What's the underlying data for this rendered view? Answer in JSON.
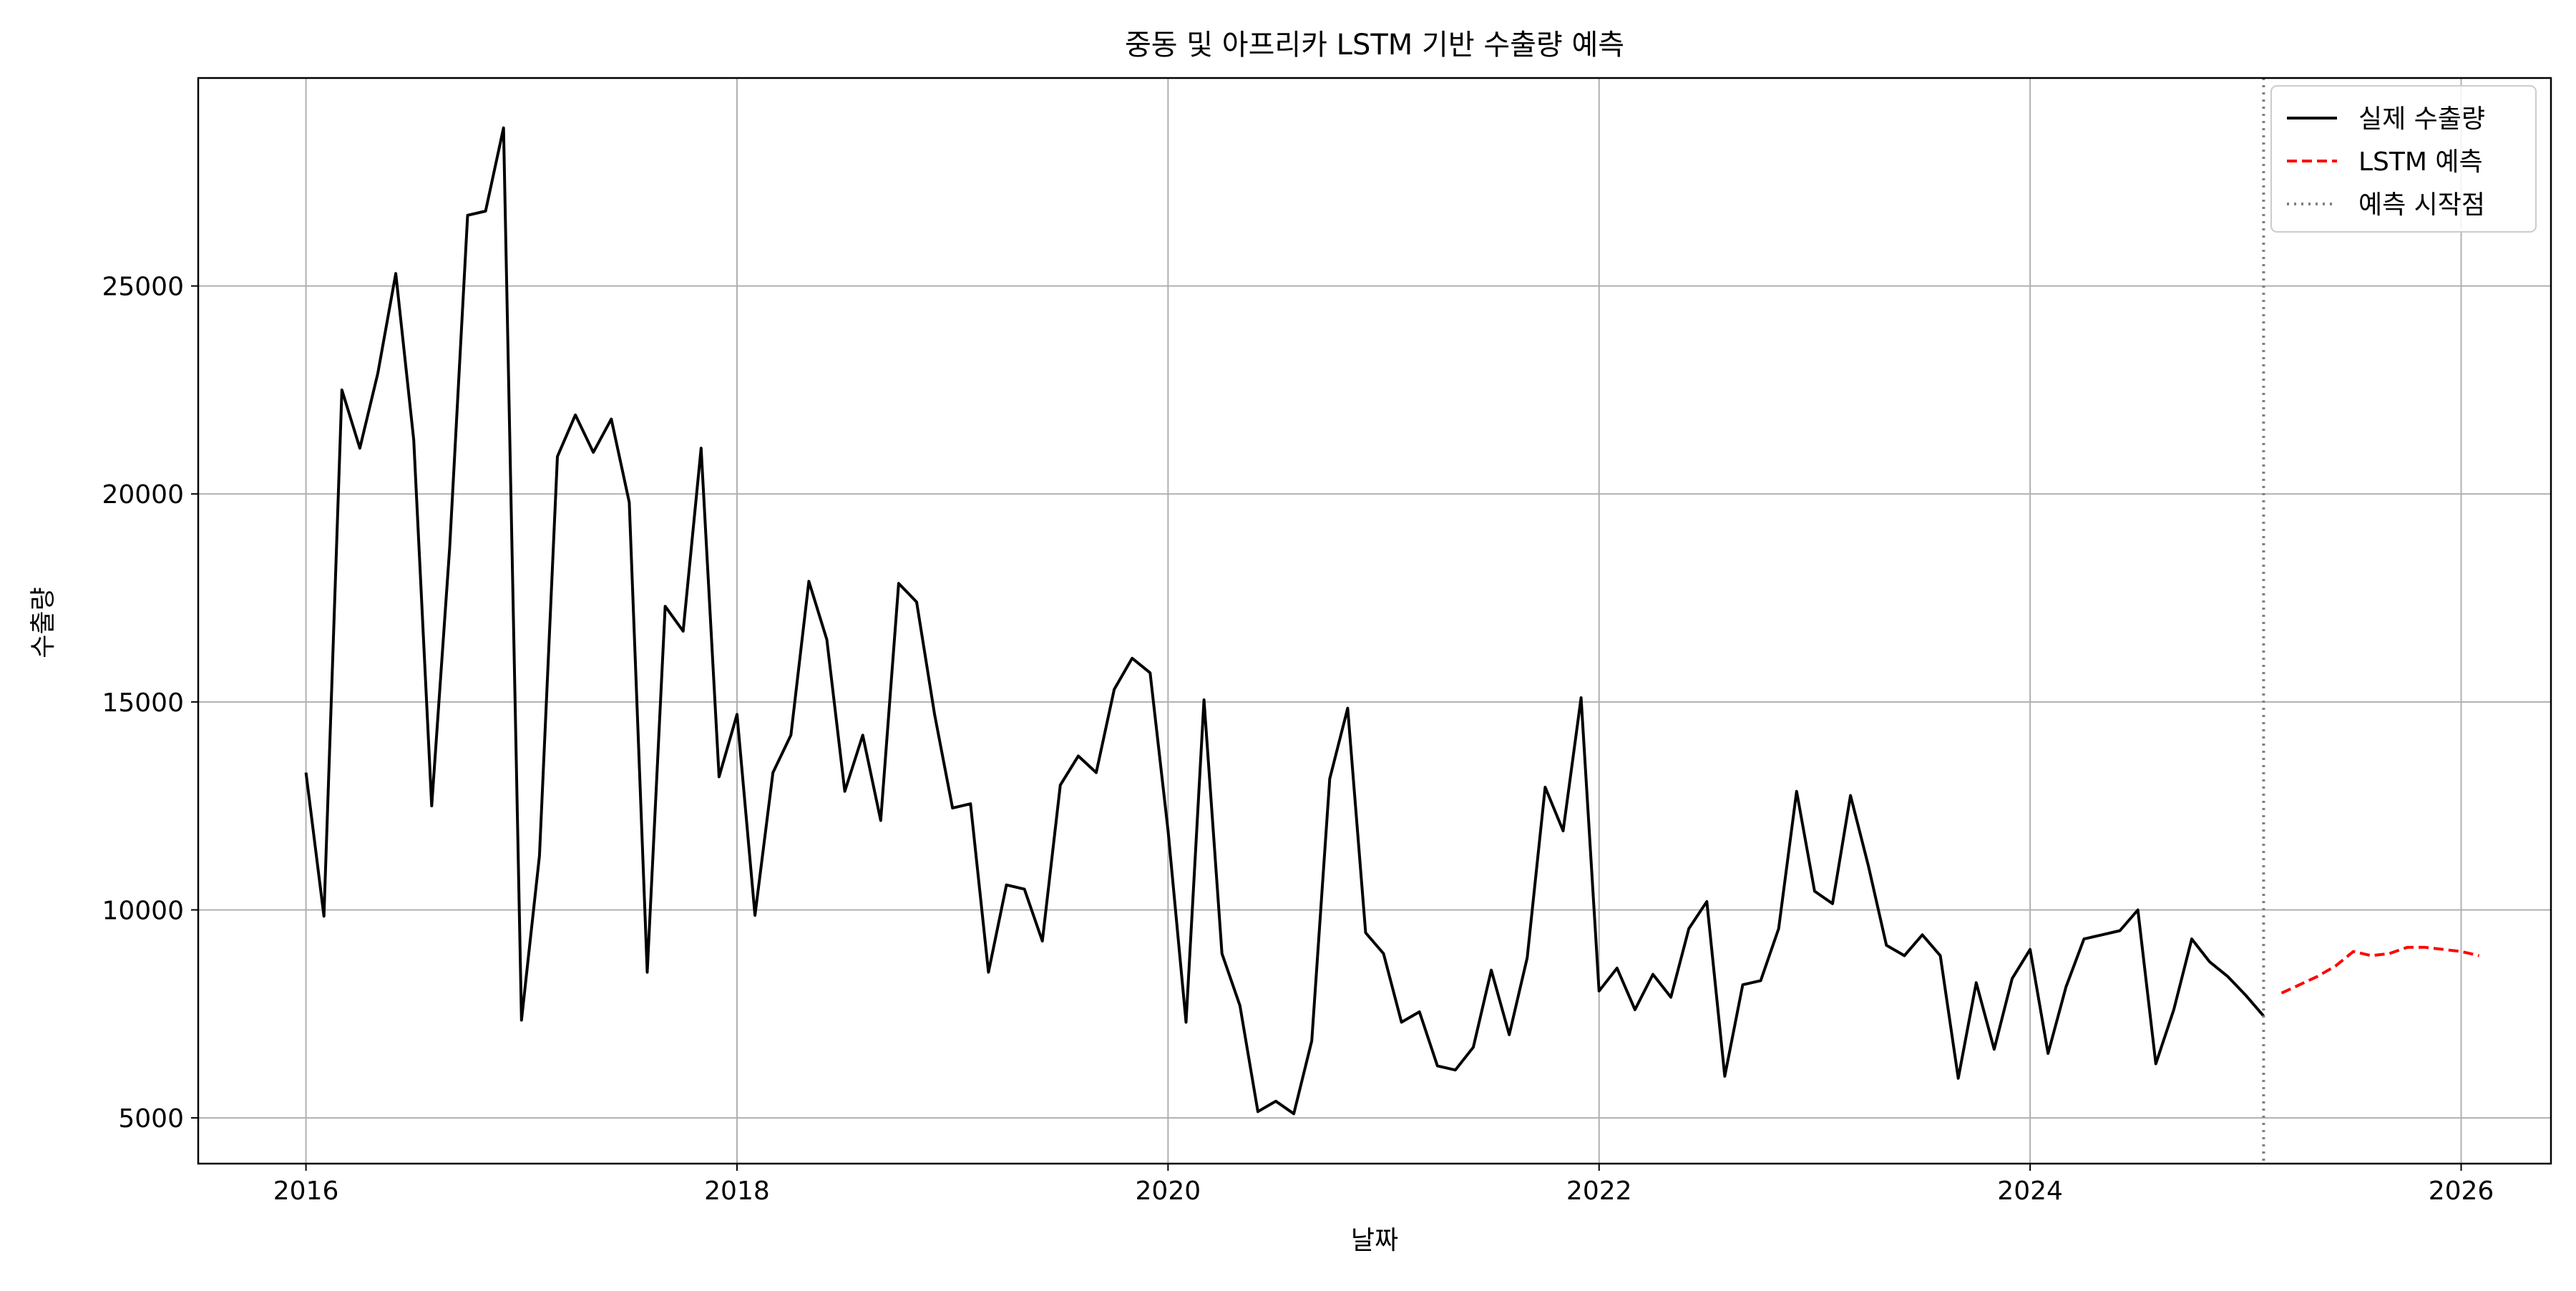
{
  "chart_data": {
    "type": "line",
    "title": "중동 및 아프리카 LSTM 기반 수출량 예측",
    "xlabel": "날짜",
    "ylabel": "수출량",
    "xlim": [
      "2015-07-01",
      "2026-06-01"
    ],
    "ylim": [
      3900,
      30000
    ],
    "x_ticks": [
      "2016",
      "2018",
      "2020",
      "2022",
      "2024",
      "2026"
    ],
    "y_ticks": [
      5000,
      10000,
      15000,
      20000,
      25000
    ],
    "grid": true,
    "legend": "top-right",
    "series": [
      {
        "name": "실제 수출량",
        "color": "#000000",
        "style": "solid",
        "x": [
          "2016-01",
          "2016-02",
          "2016-03",
          "2016-04",
          "2016-05",
          "2016-06",
          "2016-07",
          "2016-08",
          "2016-09",
          "2016-10",
          "2016-11",
          "2016-12",
          "2017-01",
          "2017-02",
          "2017-03",
          "2017-04",
          "2017-05",
          "2017-06",
          "2017-07",
          "2017-08",
          "2017-09",
          "2017-10",
          "2017-11",
          "2017-12",
          "2018-01",
          "2018-02",
          "2018-03",
          "2018-04",
          "2018-05",
          "2018-06",
          "2018-07",
          "2018-08",
          "2018-09",
          "2018-10",
          "2018-11",
          "2018-12",
          "2019-01",
          "2019-02",
          "2019-03",
          "2019-04",
          "2019-05",
          "2019-06",
          "2019-07",
          "2019-08",
          "2019-09",
          "2019-10",
          "2019-11",
          "2019-12",
          "2020-01",
          "2020-02",
          "2020-03",
          "2020-04",
          "2020-05",
          "2020-06",
          "2020-07",
          "2020-08",
          "2020-09",
          "2020-10",
          "2020-11",
          "2020-12",
          "2021-01",
          "2021-02",
          "2021-03",
          "2021-04",
          "2021-05",
          "2021-06",
          "2021-07",
          "2021-08",
          "2021-09",
          "2021-10",
          "2021-11",
          "2021-12",
          "2022-01",
          "2022-02",
          "2022-03",
          "2022-04",
          "2022-05",
          "2022-06",
          "2022-07",
          "2022-08",
          "2022-09",
          "2022-10",
          "2022-11",
          "2022-12",
          "2023-01",
          "2023-02",
          "2023-03",
          "2023-04",
          "2023-05",
          "2023-06",
          "2023-07",
          "2023-08",
          "2023-09",
          "2023-10",
          "2023-11",
          "2023-12",
          "2024-01",
          "2024-02",
          "2024-03",
          "2024-04",
          "2024-05",
          "2024-06",
          "2024-07",
          "2024-08",
          "2024-09",
          "2024-10",
          "2024-11",
          "2024-12",
          "2025-01",
          "2025-02"
        ],
        "values": [
          13300,
          9850,
          22500,
          21100,
          22900,
          25300,
          21300,
          12500,
          18700,
          26700,
          26800,
          28800,
          7350,
          11300,
          20900,
          21900,
          21000,
          21800,
          19800,
          8500,
          17300,
          16700,
          21100,
          13200,
          14700,
          9870,
          13300,
          14200,
          17900,
          16500,
          12850,
          14200,
          12150,
          17850,
          17400,
          14700,
          12450,
          12550,
          8500,
          10600,
          10500,
          9250,
          13000,
          13700,
          13300,
          15300,
          16050,
          15700,
          11900,
          7300,
          15050,
          8950,
          7700,
          5150,
          5400,
          5100,
          6850,
          13150,
          14850,
          9450,
          8950,
          7300,
          7550,
          6250,
          6150,
          6700,
          8550,
          7000,
          8850,
          12950,
          11900,
          15100,
          8050,
          8600,
          7600,
          8450,
          7900,
          9550,
          10200,
          6000,
          8200,
          8300,
          9550,
          12850,
          10450,
          10150,
          12750,
          11050,
          9150,
          8900,
          9400,
          8900,
          5950,
          8250,
          6650,
          8350,
          9050,
          6550,
          8150,
          9300,
          9400,
          9500,
          10000,
          6300,
          7600,
          9300,
          8750,
          8400,
          7950,
          7450
        ]
      },
      {
        "name": "LSTM 예측",
        "color": "#ff0000",
        "style": "dashed",
        "x": [
          "2025-03",
          "2025-04",
          "2025-05",
          "2025-06",
          "2025-07",
          "2025-08",
          "2025-09",
          "2025-10",
          "2025-11",
          "2025-12",
          "2026-01",
          "2026-02"
        ],
        "values": [
          8000,
          8200,
          8400,
          8650,
          9000,
          8900,
          8950,
          9100,
          9100,
          9050,
          9000,
          8900
        ]
      }
    ],
    "vline": {
      "name": "예측 시작점",
      "x": "2025-02",
      "color": "#808080",
      "style": "dotted"
    }
  }
}
